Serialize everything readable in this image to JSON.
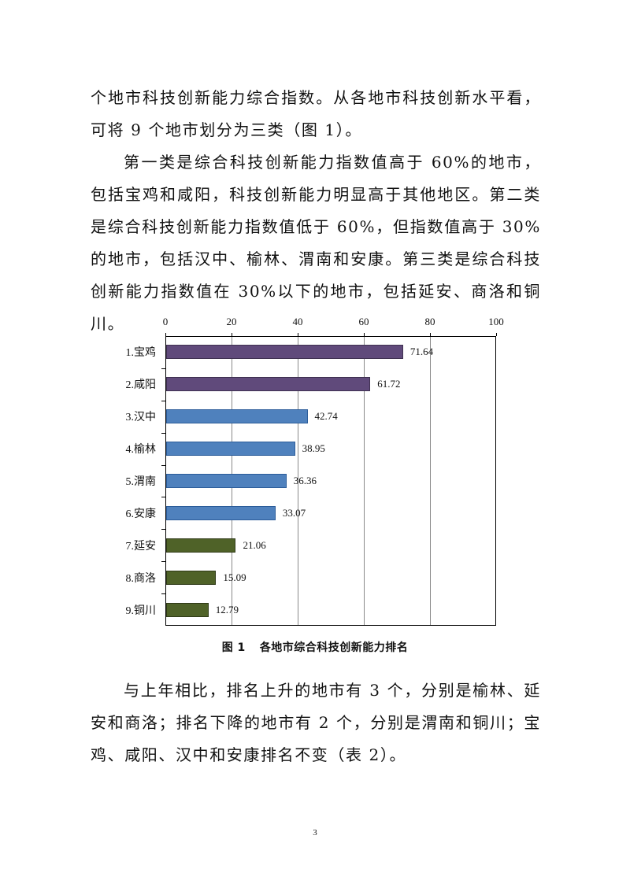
{
  "document": {
    "paragraphs": [
      "个地市科技创新能力综合指数。从各地市科技创新水平看，可将 9 个地市划分为三类（图 1）。",
      "第一类是综合科技创新能力指数值高于 60%的地市，包括宝鸡和咸阳，科技创新能力明显高于其他地区。第二类是综合科技创新能力指数值低于 60%，但指数值高于 30%的地市，包括汉中、榆林、渭南和安康。第三类是综合科技创新能力指数值在 30%以下的地市，包括延安、商洛和铜川。",
      "与上年相比，排名上升的地市有 3 个，分别是榆林、延安和商洛；排名下降的地市有 2 个，分别是渭南和铜川；宝鸡、咸阳、汉中和安康排名不变（表 2）。"
    ],
    "figure_caption": {
      "number": "图 1",
      "title": "各地市综合科技创新能力排名"
    },
    "page_number": "3"
  },
  "colors": {
    "tier1": "#604a7b",
    "tier2": "#4f81bd",
    "tier3": "#4f6228",
    "tier1_border": "#3f3151",
    "tier2_border": "#2c5d9a",
    "tier3_border": "#2f3a17"
  },
  "chart_data": {
    "type": "bar",
    "orientation": "horizontal",
    "title": "各地市综合科技创新能力排名",
    "xlabel": "",
    "ylabel": "",
    "xlim": [
      0,
      100
    ],
    "x_ticks": [
      "0",
      "20",
      "40",
      "60",
      "80",
      "100"
    ],
    "x_axis_position": "top",
    "grid": true,
    "legend": "none",
    "categories": [
      "1.宝鸡",
      "2.咸阳",
      "3.汉中",
      "4.榆林",
      "5.渭南",
      "6.安康",
      "7.延安",
      "8.商洛",
      "9.铜川"
    ],
    "values": [
      71.64,
      61.72,
      42.74,
      38.95,
      36.36,
      33.07,
      21.06,
      15.09,
      12.79
    ],
    "value_labels": [
      "71.64",
      "61.72",
      "42.74",
      "38.95",
      "36.36",
      "33.07",
      "21.06",
      "15.09",
      "12.79"
    ],
    "tiers": [
      "tier1",
      "tier1",
      "tier2",
      "tier2",
      "tier2",
      "tier2",
      "tier3",
      "tier3",
      "tier3"
    ]
  }
}
